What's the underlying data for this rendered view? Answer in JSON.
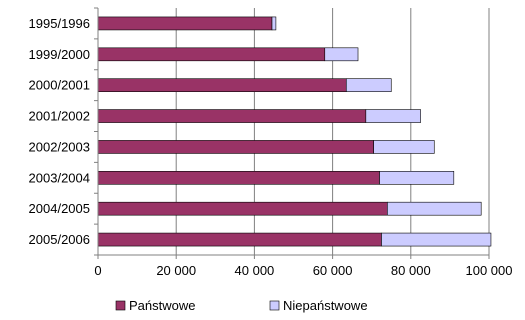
{
  "chart_data": {
    "type": "bar",
    "orientation": "horizontal",
    "stacked": true,
    "title": "",
    "xlabel": "",
    "ylabel": "",
    "categories": [
      "1995/1996",
      "1999/2000",
      "2000/2001",
      "2001/2002",
      "2002/2003",
      "2003/2004",
      "2004/2005",
      "2005/2006"
    ],
    "series": [
      {
        "name": "Państwowe",
        "color": "#993366",
        "values": [
          44500,
          58000,
          63500,
          68500,
          70500,
          72000,
          74000,
          72500
        ]
      },
      {
        "name": "Niepaństwowe",
        "color": "#CCCCFF",
        "values": [
          1000,
          8500,
          11500,
          14000,
          15500,
          19000,
          24000,
          28000
        ]
      }
    ],
    "xlim": [
      0,
      100000
    ],
    "xticks": [
      0,
      20000,
      40000,
      60000,
      80000,
      100000
    ],
    "xtick_labels": [
      "0",
      "20 000",
      "40 000",
      "60 000",
      "80 000",
      "100 000"
    ],
    "grid": "vertical",
    "legend": "bottom"
  }
}
